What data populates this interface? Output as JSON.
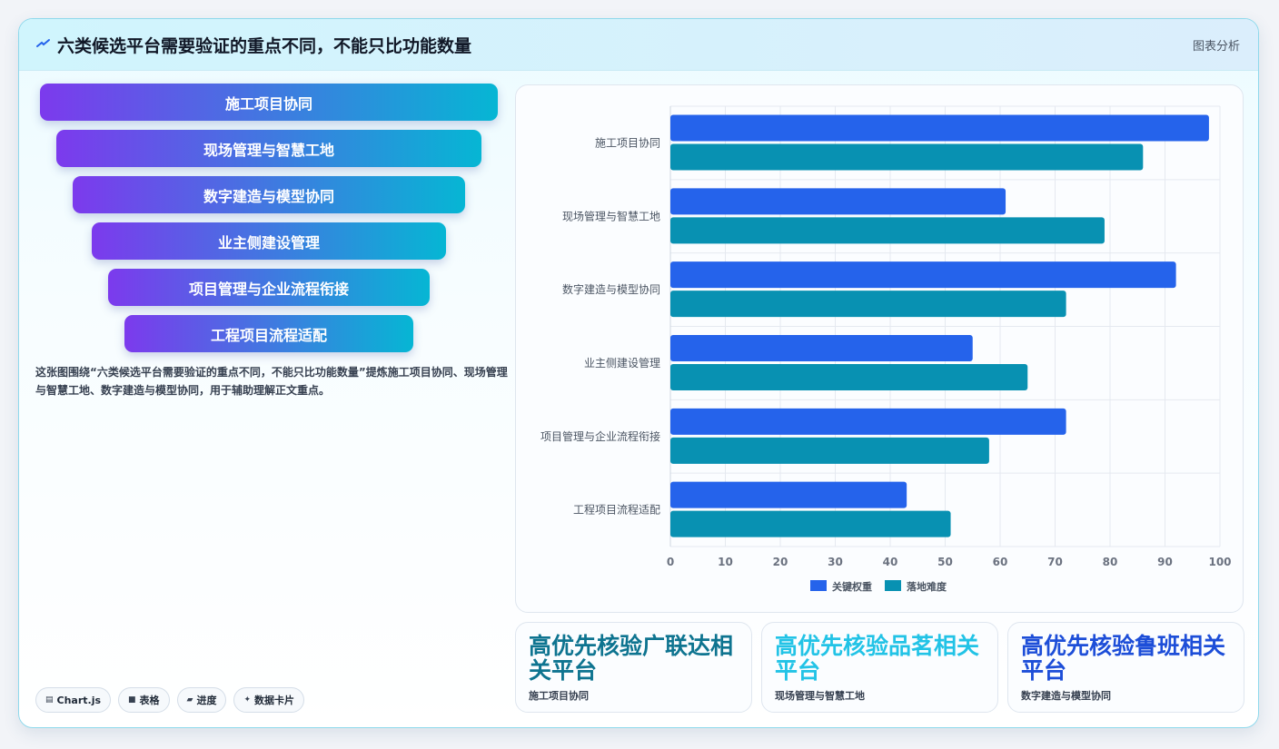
{
  "header": {
    "title": "六类候选平台需要验证的重点不同，不能只比功能数量",
    "analysis_label": "图表分析",
    "icon": "trend-line-icon"
  },
  "funnel": {
    "steps": [
      "施工项目协同",
      "现场管理与智慧工地",
      "数字建造与模型协同",
      "业主侧建设管理",
      "项目管理与企业流程衔接",
      "工程项目流程适配"
    ]
  },
  "description": "这张图围绕“六类候选平台需要验证的重点不同，不能只比功能数量”提炼施工项目协同、现场管理与智慧工地、数字建造与模型协同，用于辅助理解正文重点。",
  "tags": [
    {
      "icon": "table-icon",
      "glyph": "▤",
      "label": "Chart.js"
    },
    {
      "icon": "grid-icon",
      "glyph": "■",
      "label": "表格"
    },
    {
      "icon": "progress-icon",
      "glyph": "▰",
      "label": "进度"
    },
    {
      "icon": "sparkle-icon",
      "glyph": "✦",
      "label": "数据卡片"
    }
  ],
  "chart_data": {
    "type": "bar",
    "orientation": "horizontal",
    "categories": [
      "施工项目协同",
      "现场管理与智慧工地",
      "数字建造与模型协同",
      "业主侧建设管理",
      "项目管理与企业流程衔接",
      "工程项目流程适配"
    ],
    "series": [
      {
        "name": "关键权重",
        "color": "#2563eb",
        "values": [
          98,
          61,
          92,
          55,
          72,
          43
        ]
      },
      {
        "name": "落地难度",
        "color": "#0891b2",
        "values": [
          86,
          79,
          72,
          65,
          58,
          51
        ]
      }
    ],
    "xlim": [
      0,
      100
    ],
    "xticks": [
      0,
      10,
      20,
      30,
      40,
      50,
      60,
      70,
      80,
      90,
      100
    ],
    "grid": true,
    "legend": "bottom"
  },
  "kpis": [
    {
      "value": "高优先核验广联达相关平台",
      "label": "施工项目协同",
      "color": "#0e7490"
    },
    {
      "value": "高优先核验品茗相关平台",
      "label": "现场管理与智慧工地",
      "color": "#22c3e6"
    },
    {
      "value": "高优先核验鲁班相关平台",
      "label": "数字建造与模型协同",
      "color": "#1d4ed8"
    }
  ]
}
